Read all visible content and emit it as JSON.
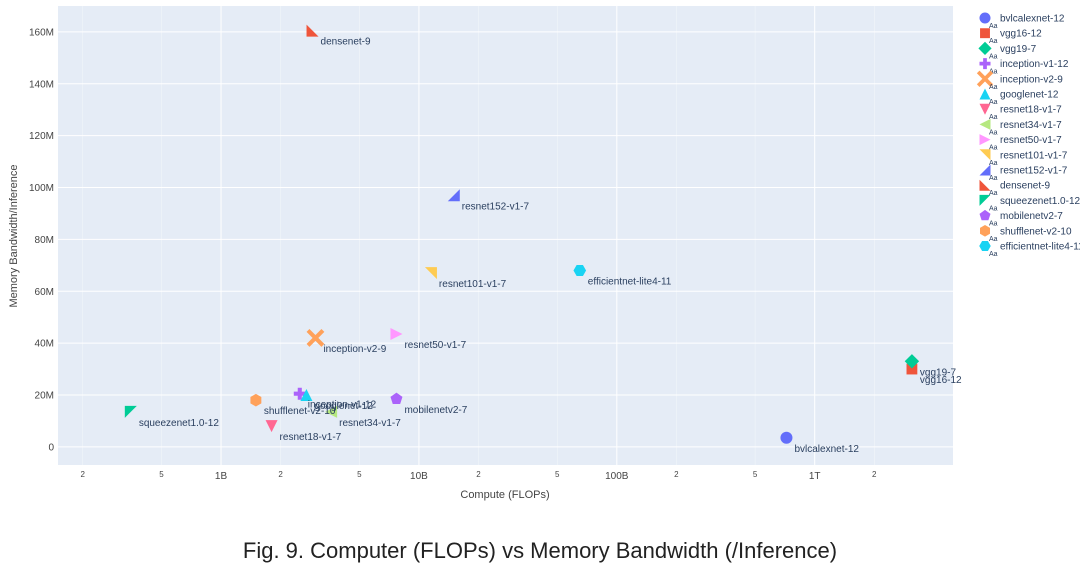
{
  "chart_data": {
    "type": "scatter",
    "title": "",
    "xlabel": "Compute (FLOPs)",
    "ylabel": "Memory Bandwidth/Inference",
    "xscale": "log",
    "xlim": [
      150000000,
      5000000000000
    ],
    "ylim": [
      -7000000,
      170000000
    ],
    "grid": true,
    "legend_position": "right",
    "x_major_ticks": [
      {
        "value": 1000000000,
        "label": "1B"
      },
      {
        "value": 10000000000,
        "label": "10B"
      },
      {
        "value": 100000000000,
        "label": "100B"
      },
      {
        "value": 1000000000000,
        "label": "1T"
      }
    ],
    "x_minor_ticks": [
      {
        "value": 200000000,
        "label": "2"
      },
      {
        "value": 500000000,
        "label": "5"
      },
      {
        "value": 2000000000,
        "label": "2"
      },
      {
        "value": 5000000000,
        "label": "5"
      },
      {
        "value": 20000000000,
        "label": "2"
      },
      {
        "value": 50000000000,
        "label": "5"
      },
      {
        "value": 200000000000,
        "label": "2"
      },
      {
        "value": 500000000000,
        "label": "5"
      },
      {
        "value": 2000000000000,
        "label": "2"
      }
    ],
    "y_ticks": [
      {
        "value": 0,
        "label": "0"
      },
      {
        "value": 20000000,
        "label": "20M"
      },
      {
        "value": 40000000,
        "label": "40M"
      },
      {
        "value": 60000000,
        "label": "60M"
      },
      {
        "value": 80000000,
        "label": "80M"
      },
      {
        "value": 100000000,
        "label": "100M"
      },
      {
        "value": 120000000,
        "label": "120M"
      },
      {
        "value": 140000000,
        "label": "140M"
      },
      {
        "value": 160000000,
        "label": "160M"
      }
    ],
    "series": [
      {
        "name": "bvlcalexnet-12",
        "symbol": "circle",
        "color": "#636efa",
        "x": 720000000000,
        "y": 3500000,
        "label_dx": 8,
        "label_dy": 14
      },
      {
        "name": "vgg16-12",
        "symbol": "square",
        "color": "#ef553b",
        "x": 3100000000000,
        "y": 30000000,
        "label_dx": 8,
        "label_dy": 14
      },
      {
        "name": "vgg19-7",
        "symbol": "diamond",
        "color": "#00cc96",
        "x": 3100000000000,
        "y": 33000000,
        "label_dx": 8,
        "label_dy": 14
      },
      {
        "name": "inception-v1-12",
        "symbol": "cross",
        "color": "#ab63fa",
        "x": 2500000000,
        "y": 20500000,
        "label_dx": 8,
        "label_dy": 14
      },
      {
        "name": "inception-v2-9",
        "symbol": "x",
        "color": "#ffa15a",
        "x": 3000000000,
        "y": 42000000,
        "label_dx": 8,
        "label_dy": 14
      },
      {
        "name": "googlenet-12",
        "symbol": "triangle-up",
        "color": "#19d3f3",
        "x": 2700000000,
        "y": 20000000,
        "label_dx": 8,
        "label_dy": 14
      },
      {
        "name": "resnet18-v1-7",
        "symbol": "triangle-down",
        "color": "#ff6692",
        "x": 1800000000,
        "y": 8000000,
        "label_dx": 8,
        "label_dy": 14
      },
      {
        "name": "resnet34-v1-7",
        "symbol": "triangle-left",
        "color": "#b6e880",
        "x": 3600000000,
        "y": 13500000,
        "label_dx": 8,
        "label_dy": 14
      },
      {
        "name": "resnet50-v1-7",
        "symbol": "triangle-right",
        "color": "#ff97ff",
        "x": 7700000000,
        "y": 43500000,
        "label_dx": 8,
        "label_dy": 14
      },
      {
        "name": "resnet101-v1-7",
        "symbol": "triangle-ne",
        "color": "#fecb52",
        "x": 11500000000,
        "y": 67000000,
        "label_dx": 8,
        "label_dy": 14
      },
      {
        "name": "resnet152-v1-7",
        "symbol": "triangle-se",
        "color": "#636efa",
        "x": 15000000000,
        "y": 97000000,
        "label_dx": 8,
        "label_dy": 14
      },
      {
        "name": "densenet-9",
        "symbol": "triangle-sw",
        "color": "#ef553b",
        "x": 2900000000,
        "y": 160500000,
        "label_dx": 8,
        "label_dy": 14
      },
      {
        "name": "squeezenet1.0-12",
        "symbol": "triangle-nw",
        "color": "#00cc96",
        "x": 350000000,
        "y": 13500000,
        "label_dx": 8,
        "label_dy": 14
      },
      {
        "name": "mobilenetv2-7",
        "symbol": "pentagon",
        "color": "#ab63fa",
        "x": 7700000000,
        "y": 18500000,
        "label_dx": 8,
        "label_dy": 14
      },
      {
        "name": "shufflenet-v2-10",
        "symbol": "hexagon",
        "color": "#ffa15a",
        "x": 1500000000,
        "y": 18000000,
        "label_dx": 8,
        "label_dy": 14
      },
      {
        "name": "efficientnet-lite4-11",
        "symbol": "hexagon2",
        "color": "#19d3f3",
        "x": 65000000000,
        "y": 68000000,
        "label_dx": 8,
        "label_dy": 14
      }
    ],
    "legend_sublabel": "Aa"
  },
  "caption": "Fig. 9. Computer (FLOPs) vs Memory Bandwidth (/Inference)"
}
